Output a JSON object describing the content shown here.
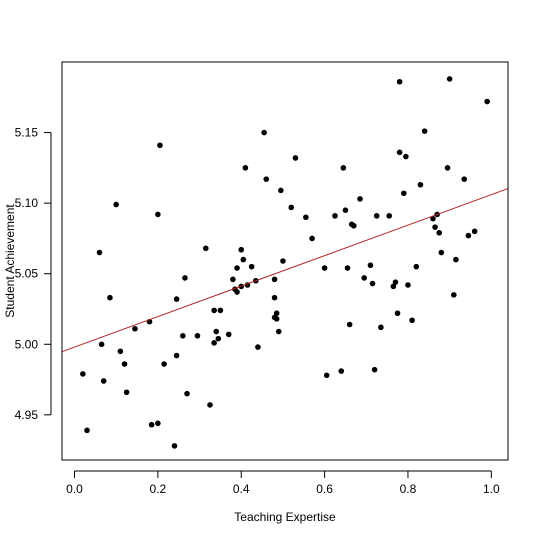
{
  "chart_data": {
    "type": "scatter",
    "xlabel": "Teaching Expertise",
    "ylabel": "Student Achievement",
    "xlim": [
      -0.03,
      1.04
    ],
    "ylim": [
      4.918,
      5.2
    ],
    "xticks": [
      0.0,
      0.2,
      0.4,
      0.6,
      0.8,
      1.0
    ],
    "xtick_labels": [
      "0.0",
      "0.2",
      "0.4",
      "0.6",
      "0.8",
      "1.0"
    ],
    "yticks": [
      4.95,
      5.0,
      5.05,
      5.1,
      5.15
    ],
    "ytick_labels": [
      "4.95",
      "5.00",
      "5.05",
      "5.10",
      "5.15"
    ],
    "grid": false,
    "regression_line": {
      "intercept": 4.998,
      "slope": 0.108,
      "color": "#b22222"
    },
    "point_color": "#000000",
    "points": [
      [
        0.02,
        4.979
      ],
      [
        0.03,
        4.939
      ],
      [
        0.06,
        5.065
      ],
      [
        0.065,
        5.0
      ],
      [
        0.07,
        4.974
      ],
      [
        0.085,
        5.033
      ],
      [
        0.1,
        5.099
      ],
      [
        0.11,
        4.995
      ],
      [
        0.12,
        4.986
      ],
      [
        0.125,
        4.966
      ],
      [
        0.145,
        5.011
      ],
      [
        0.18,
        5.016
      ],
      [
        0.185,
        4.943
      ],
      [
        0.2,
        4.944
      ],
      [
        0.2,
        5.092
      ],
      [
        0.205,
        5.141
      ],
      [
        0.215,
        4.986
      ],
      [
        0.24,
        4.928
      ],
      [
        0.245,
        4.992
      ],
      [
        0.245,
        5.032
      ],
      [
        0.26,
        5.006
      ],
      [
        0.265,
        5.047
      ],
      [
        0.27,
        4.965
      ],
      [
        0.295,
        5.006
      ],
      [
        0.315,
        5.068
      ],
      [
        0.325,
        4.957
      ],
      [
        0.335,
        5.024
      ],
      [
        0.335,
        5.001
      ],
      [
        0.34,
        5.009
      ],
      [
        0.345,
        5.004
      ],
      [
        0.35,
        5.024
      ],
      [
        0.37,
        5.007
      ],
      [
        0.38,
        5.046
      ],
      [
        0.385,
        5.039
      ],
      [
        0.39,
        5.054
      ],
      [
        0.39,
        5.037
      ],
      [
        0.4,
        5.041
      ],
      [
        0.4,
        5.067
      ],
      [
        0.405,
        5.06
      ],
      [
        0.41,
        5.125
      ],
      [
        0.415,
        5.042
      ],
      [
        0.425,
        5.055
      ],
      [
        0.435,
        5.045
      ],
      [
        0.44,
        4.998
      ],
      [
        0.455,
        5.15
      ],
      [
        0.46,
        5.117
      ],
      [
        0.48,
        5.046
      ],
      [
        0.48,
        5.033
      ],
      [
        0.48,
        5.019
      ],
      [
        0.485,
        5.022
      ],
      [
        0.485,
        5.018
      ],
      [
        0.49,
        5.009
      ],
      [
        0.495,
        5.109
      ],
      [
        0.5,
        5.059
      ],
      [
        0.52,
        5.097
      ],
      [
        0.53,
        5.132
      ],
      [
        0.555,
        5.09
      ],
      [
        0.57,
        5.075
      ],
      [
        0.6,
        5.054
      ],
      [
        0.605,
        4.978
      ],
      [
        0.625,
        5.091
      ],
      [
        0.64,
        4.981
      ],
      [
        0.645,
        5.125
      ],
      [
        0.65,
        5.095
      ],
      [
        0.655,
        5.054
      ],
      [
        0.66,
        5.014
      ],
      [
        0.665,
        5.085
      ],
      [
        0.67,
        5.084
      ],
      [
        0.685,
        5.103
      ],
      [
        0.695,
        5.047
      ],
      [
        0.71,
        5.056
      ],
      [
        0.715,
        5.043
      ],
      [
        0.72,
        4.982
      ],
      [
        0.725,
        5.091
      ],
      [
        0.735,
        5.012
      ],
      [
        0.755,
        5.091
      ],
      [
        0.765,
        5.041
      ],
      [
        0.77,
        5.044
      ],
      [
        0.775,
        5.022
      ],
      [
        0.78,
        5.186
      ],
      [
        0.78,
        5.136
      ],
      [
        0.79,
        5.107
      ],
      [
        0.795,
        5.133
      ],
      [
        0.8,
        5.042
      ],
      [
        0.81,
        5.017
      ],
      [
        0.82,
        5.055
      ],
      [
        0.83,
        5.113
      ],
      [
        0.84,
        5.151
      ],
      [
        0.86,
        5.089
      ],
      [
        0.865,
        5.083
      ],
      [
        0.87,
        5.092
      ],
      [
        0.875,
        5.079
      ],
      [
        0.88,
        5.065
      ],
      [
        0.895,
        5.125
      ],
      [
        0.9,
        5.188
      ],
      [
        0.91,
        5.035
      ],
      [
        0.915,
        5.06
      ],
      [
        0.935,
        5.117
      ],
      [
        0.945,
        5.077
      ],
      [
        0.96,
        5.08
      ],
      [
        0.99,
        5.172
      ]
    ]
  }
}
